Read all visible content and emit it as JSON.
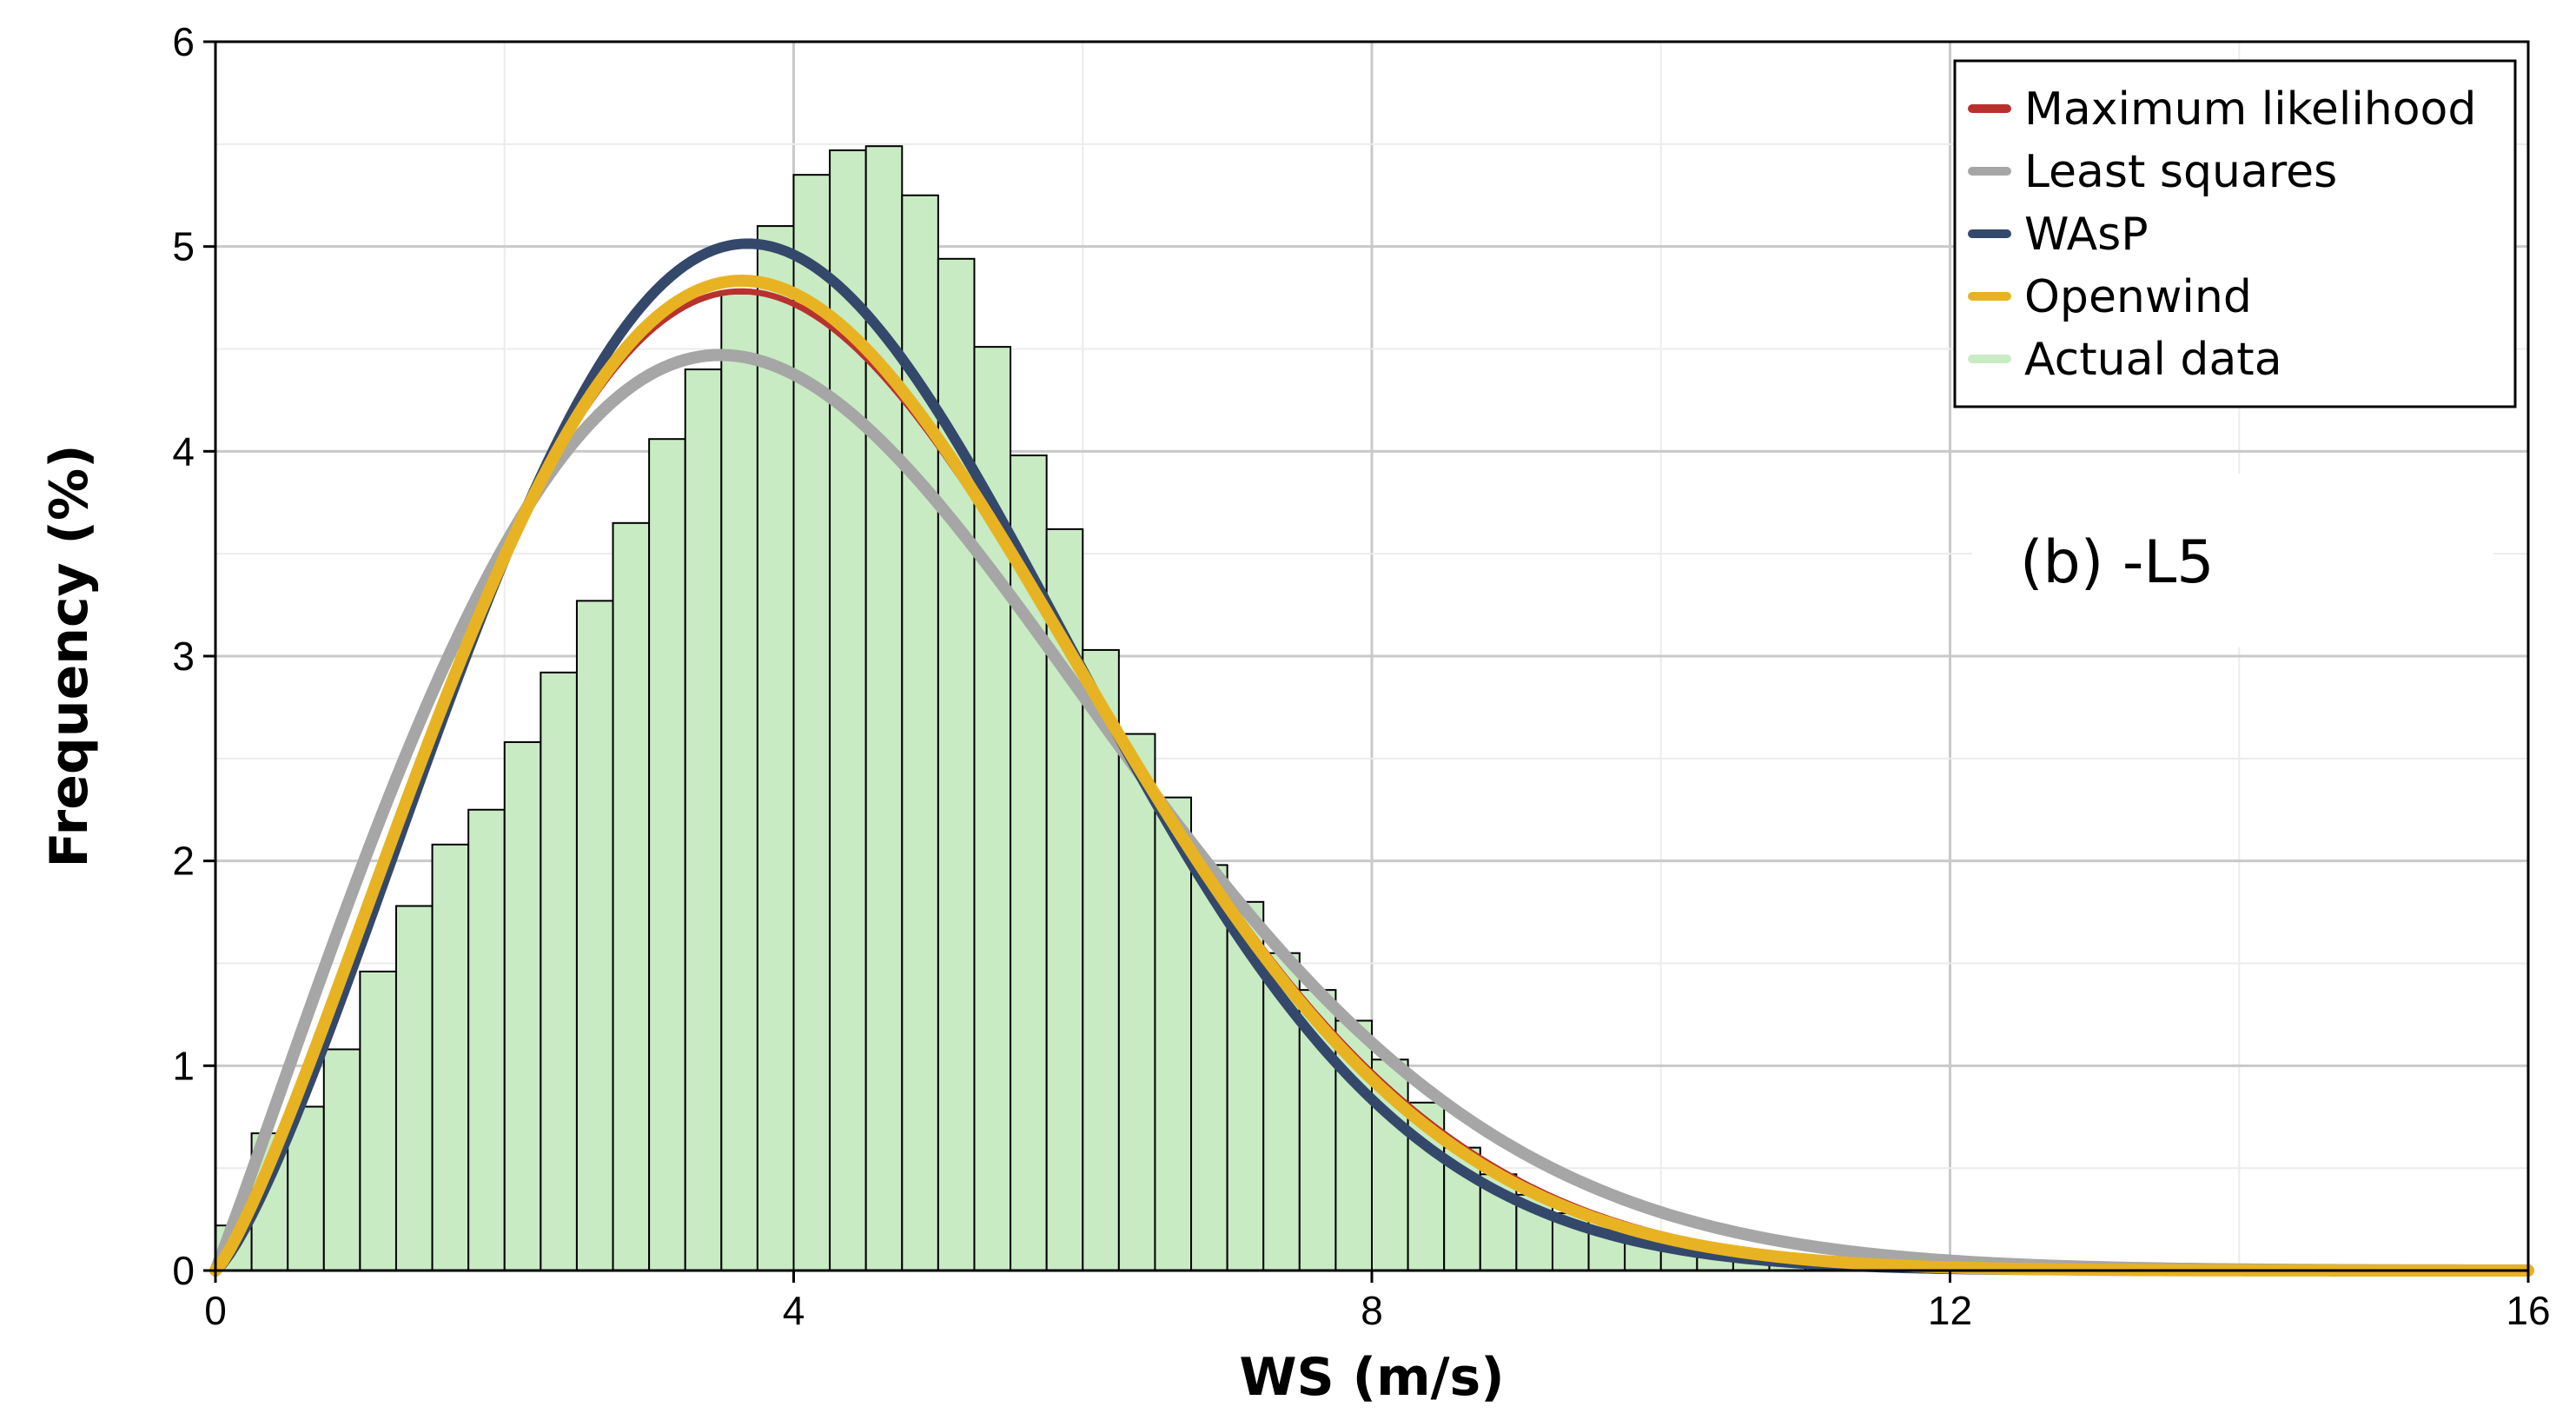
{
  "chart_data": {
    "type": "bar",
    "title": "",
    "annotation": "(b)  -L5",
    "xlabel": "WS (m/s)",
    "ylabel": "Frequency (%)",
    "xlim": [
      0,
      16
    ],
    "ylim": [
      0,
      6
    ],
    "xticks": [
      0,
      4,
      8,
      12,
      16
    ],
    "yticks": [
      0,
      1,
      2,
      3,
      4,
      5,
      6
    ],
    "grid": true,
    "legend_position": "top-right",
    "histogram": {
      "name": "Actual data",
      "bin_width": 0.25,
      "bin_starts": [
        0,
        0.25,
        0.5,
        0.75,
        1.0,
        1.25,
        1.5,
        1.75,
        2.0,
        2.25,
        2.5,
        2.75,
        3.0,
        3.25,
        3.5,
        3.75,
        4.0,
        4.25,
        4.5,
        4.75,
        5.0,
        5.25,
        5.5,
        5.75,
        6.0,
        6.25,
        6.5,
        6.75,
        7.0,
        7.25,
        7.5,
        7.75,
        8.0,
        8.25,
        8.5,
        8.75,
        9.0,
        9.25,
        9.5,
        9.75,
        10.0,
        10.25,
        10.5,
        10.75,
        11.0,
        11.25,
        11.5,
        11.75
      ],
      "values": [
        0.22,
        0.67,
        0.8,
        1.08,
        1.46,
        1.78,
        2.08,
        2.25,
        2.58,
        2.92,
        3.27,
        3.65,
        4.06,
        4.4,
        4.77,
        5.1,
        5.35,
        5.47,
        5.49,
        5.25,
        4.94,
        4.51,
        3.98,
        3.62,
        3.03,
        2.62,
        2.31,
        1.98,
        1.8,
        1.55,
        1.37,
        1.22,
        1.03,
        0.82,
        0.6,
        0.47,
        0.37,
        0.28,
        0.2,
        0.14,
        0.1,
        0.08,
        0.06,
        0.05,
        0.03,
        0.03,
        0.02,
        0.01
      ],
      "color": "#c8ebc3"
    },
    "series": [
      {
        "name": "Maximum likelihood",
        "type": "weibull",
        "k": 2.2,
        "c": 4.79,
        "color": "#b8312f"
      },
      {
        "name": "Least squares",
        "type": "weibull",
        "k": 2.04,
        "c": 4.86,
        "color": "#a6a6a6"
      },
      {
        "name": "WAsP",
        "type": "weibull",
        "k": 2.3,
        "c": 4.72,
        "color": "#34486b"
      },
      {
        "name": "Openwind",
        "type": "weibull",
        "k": 2.22,
        "c": 4.77,
        "color": "#e8b322"
      }
    ],
    "legend_entries": [
      "Maximum likelihood",
      "Least squares",
      "WAsP",
      "Openwind",
      "Actual data"
    ]
  }
}
